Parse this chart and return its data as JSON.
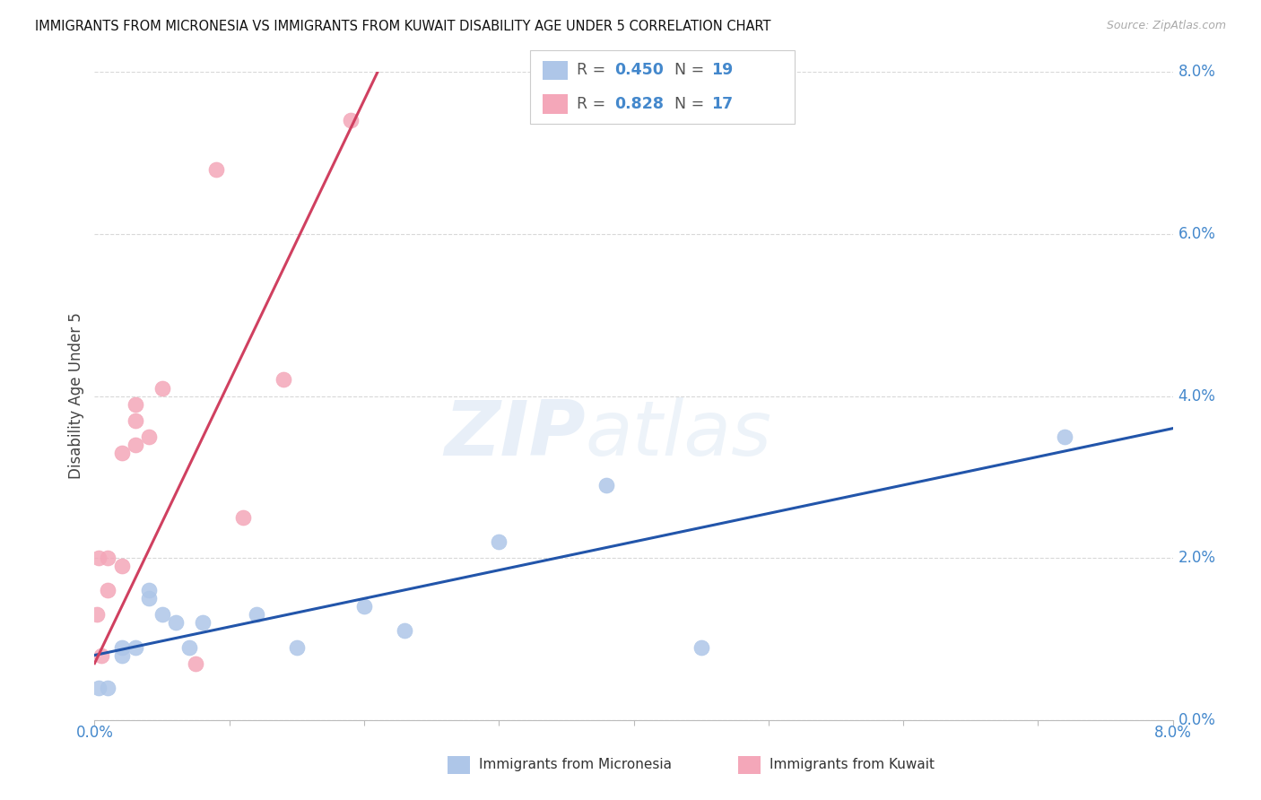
{
  "title": "IMMIGRANTS FROM MICRONESIA VS IMMIGRANTS FROM KUWAIT DISABILITY AGE UNDER 5 CORRELATION CHART",
  "source": "Source: ZipAtlas.com",
  "ylabel": "Disability Age Under 5",
  "watermark": "ZIPatlas",
  "r_micronesia": "0.450",
  "n_micronesia": "19",
  "r_kuwait": "0.828",
  "n_kuwait": "17",
  "micronesia_color": "#aec6e8",
  "kuwait_color": "#f4a7b9",
  "micronesia_line_color": "#2255aa",
  "kuwait_line_color": "#d04060",
  "label_color": "#4488cc",
  "micronesia_x": [
    0.0003,
    0.001,
    0.002,
    0.002,
    0.003,
    0.004,
    0.004,
    0.005,
    0.006,
    0.007,
    0.008,
    0.012,
    0.015,
    0.02,
    0.023,
    0.03,
    0.038,
    0.045,
    0.072
  ],
  "micronesia_y": [
    0.004,
    0.004,
    0.008,
    0.009,
    0.009,
    0.015,
    0.016,
    0.013,
    0.012,
    0.009,
    0.012,
    0.013,
    0.009,
    0.014,
    0.011,
    0.022,
    0.029,
    0.009,
    0.035
  ],
  "kuwait_x": [
    0.0002,
    0.0003,
    0.0005,
    0.001,
    0.001,
    0.002,
    0.002,
    0.003,
    0.003,
    0.003,
    0.004,
    0.005,
    0.0075,
    0.009,
    0.011,
    0.014,
    0.019
  ],
  "kuwait_y": [
    0.013,
    0.02,
    0.008,
    0.016,
    0.02,
    0.019,
    0.033,
    0.034,
    0.037,
    0.039,
    0.035,
    0.041,
    0.007,
    0.068,
    0.025,
    0.042,
    0.074
  ],
  "mic_line_x": [
    0.0,
    0.08
  ],
  "mic_line_y": [
    0.008,
    0.036
  ],
  "kuw_line_x": [
    0.0,
    0.021
  ],
  "kuw_line_y": [
    0.007,
    0.08
  ],
  "xlim": [
    0.0,
    0.08
  ],
  "ylim": [
    0.0,
    0.08
  ],
  "yticks": [
    0.0,
    0.02,
    0.04,
    0.06,
    0.08
  ],
  "ytick_labels": [
    "0.0%",
    "2.0%",
    "4.0%",
    "6.0%",
    "8.0%"
  ],
  "xtick_left_label": "0.0%",
  "xtick_right_label": "8.0%",
  "legend_micronesia": "Immigrants from Micronesia",
  "legend_kuwait": "Immigrants from Kuwait",
  "background": "#ffffff",
  "grid_color": "#d8d8d8"
}
